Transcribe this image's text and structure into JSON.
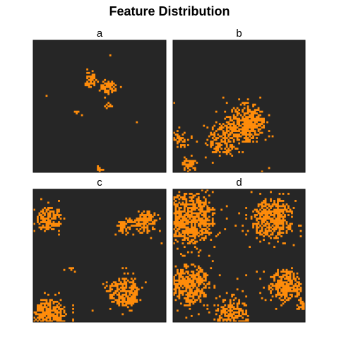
{
  "chart_data": {
    "type": "heatmap",
    "title": "Feature Distribution",
    "xlabel": "",
    "ylabel": "",
    "grid": false,
    "legend": "none",
    "colors": {
      "background": "#262626",
      "feature": "#ff8c0a",
      "panel_border": "#111111"
    },
    "grid_size": [
      75,
      75
    ],
    "value_encoding": "binary mask per panel; 1 = feature present (orange), 0 = absent (dark)",
    "panels": [
      {
        "label": "a",
        "coverage": 0.03,
        "clusters": [
          {
            "cx": 0.43,
            "cy": 0.3,
            "r": 0.055,
            "density": 0.75
          },
          {
            "cx": 0.57,
            "cy": 0.35,
            "r": 0.06,
            "density": 0.8
          },
          {
            "cx": 0.57,
            "cy": 0.5,
            "r": 0.035,
            "density": 0.6
          },
          {
            "cx": 0.33,
            "cy": 0.55,
            "r": 0.03,
            "density": 0.6
          },
          {
            "cx": 0.5,
            "cy": 0.97,
            "r": 0.025,
            "density": 0.7
          }
        ]
      },
      {
        "label": "b",
        "coverage": 0.12,
        "clusters": [
          {
            "cx": 0.55,
            "cy": 0.62,
            "r": 0.15,
            "density": 0.65
          },
          {
            "cx": 0.38,
            "cy": 0.75,
            "r": 0.13,
            "density": 0.6
          },
          {
            "cx": 0.05,
            "cy": 0.75,
            "r": 0.07,
            "density": 0.55
          },
          {
            "cx": 0.12,
            "cy": 0.95,
            "r": 0.06,
            "density": 0.65
          },
          {
            "cx": 0.57,
            "cy": 0.65,
            "r": 0.08,
            "density": 0.8
          }
        ]
      },
      {
        "label": "c",
        "coverage": 0.15,
        "clusters": [
          {
            "cx": 0.12,
            "cy": 0.22,
            "r": 0.1,
            "density": 0.7
          },
          {
            "cx": 0.85,
            "cy": 0.25,
            "r": 0.09,
            "density": 0.8
          },
          {
            "cx": 0.7,
            "cy": 0.28,
            "r": 0.07,
            "density": 0.6
          },
          {
            "cx": 0.68,
            "cy": 0.78,
            "r": 0.12,
            "density": 0.75
          },
          {
            "cx": 0.12,
            "cy": 0.95,
            "r": 0.13,
            "density": 0.85
          },
          {
            "cx": 0.3,
            "cy": 0.6,
            "r": 0.03,
            "density": 0.5
          }
        ]
      },
      {
        "label": "d",
        "coverage": 0.26,
        "clusters": [
          {
            "cx": 0.12,
            "cy": 0.22,
            "r": 0.2,
            "density": 0.8
          },
          {
            "cx": 0.75,
            "cy": 0.22,
            "r": 0.16,
            "density": 0.8
          },
          {
            "cx": 0.12,
            "cy": 0.72,
            "r": 0.16,
            "density": 0.75
          },
          {
            "cx": 0.85,
            "cy": 0.72,
            "r": 0.13,
            "density": 0.8
          },
          {
            "cx": 0.45,
            "cy": 0.95,
            "r": 0.13,
            "density": 0.65
          },
          {
            "cx": 0.97,
            "cy": 0.88,
            "r": 0.04,
            "density": 0.8
          }
        ]
      }
    ]
  }
}
